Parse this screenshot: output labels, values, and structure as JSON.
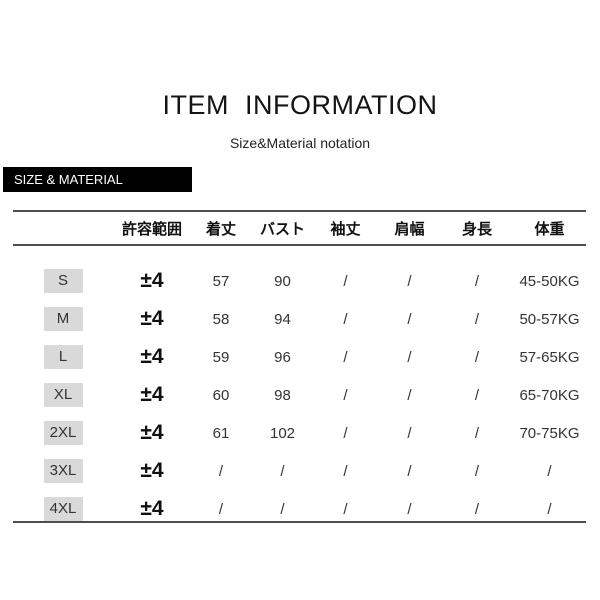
{
  "page": {
    "title": "ITEM  INFORMATION",
    "subtitle": "Size&Material notation",
    "section_banner": "SIZE & MATERIAL"
  },
  "colors": {
    "banner_bg": "#000000",
    "banner_text": "#ffffff",
    "rule_line": "#4d4d4d",
    "size_badge_bg": "#d9d9d9",
    "text": "#333333"
  },
  "size_table": {
    "columns": [
      "許容範囲",
      "着丈",
      "バスト",
      "袖丈",
      "肩幅",
      "身長",
      "体重"
    ],
    "rows": [
      {
        "size": "S",
        "values": [
          "±4",
          "57",
          "90",
          "/",
          "/",
          "/",
          "45-50KG"
        ]
      },
      {
        "size": "M",
        "values": [
          "±4",
          "58",
          "94",
          "/",
          "/",
          "/",
          "50-57KG"
        ]
      },
      {
        "size": "L",
        "values": [
          "±4",
          "59",
          "96",
          "/",
          "/",
          "/",
          "57-65KG"
        ]
      },
      {
        "size": "XL",
        "values": [
          "±4",
          "60",
          "98",
          "/",
          "/",
          "/",
          "65-70KG"
        ]
      },
      {
        "size": "2XL",
        "values": [
          "±4",
          "61",
          "102",
          "/",
          "/",
          "/",
          "70-75KG"
        ]
      },
      {
        "size": "3XL",
        "values": [
          "±4",
          "/",
          "/",
          "/",
          "/",
          "/",
          "/"
        ]
      },
      {
        "size": "4XL",
        "values": [
          "±4",
          "/",
          "/",
          "/",
          "/",
          "/",
          "/"
        ]
      }
    ]
  }
}
